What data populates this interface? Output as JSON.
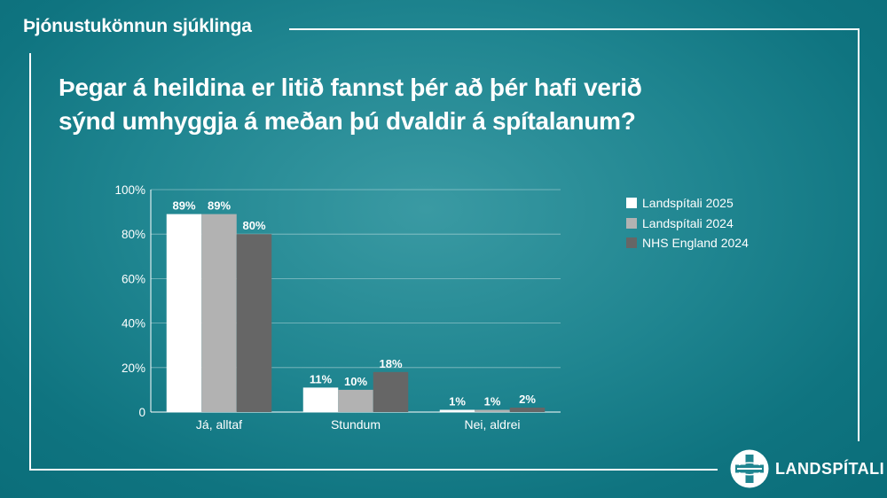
{
  "header": {
    "section_title": "Þjónustukönnun sjúklinga",
    "question_lines": [
      "Þegar á heildina er litið fannst þér að þér hafi verið",
      "sýnd umhyggja á meðan þú dvaldir á spítalanum?"
    ]
  },
  "chart_data": {
    "type": "bar",
    "title": "Þegar á heildina er litið fannst þér að þér hafi verið sýnd umhyggja á meðan þú dvaldir á spítalanum?",
    "categories": [
      "Já, alltaf",
      "Stundum",
      "Nei, aldrei"
    ],
    "series": [
      {
        "name": "Landspítali 2025",
        "values": [
          89,
          11,
          1
        ],
        "labels": [
          "89%",
          "11%",
          "1%"
        ],
        "color": "#ffffff"
      },
      {
        "name": "Landspítali 2024",
        "values": [
          89,
          10,
          1
        ],
        "labels": [
          "89%",
          "10%",
          "1%"
        ],
        "color": "#b2b2b2"
      },
      {
        "name": "NHS England 2024",
        "values": [
          80,
          18,
          2
        ],
        "labels": [
          "80%",
          "18%",
          "2%"
        ],
        "color": "#666666"
      }
    ],
    "ylim": [
      0,
      100
    ],
    "yticks": [
      0,
      20,
      40,
      60,
      80,
      100
    ],
    "ytick_labels": [
      "0",
      "20%",
      "40%",
      "60%",
      "80%",
      "100%"
    ],
    "xlabel": "",
    "ylabel": "",
    "grid": true,
    "legend_position": "right"
  },
  "logo": {
    "text": "LANDSPÍTALI"
  },
  "colors": {
    "background": "#1f8590",
    "text": "#ffffff"
  }
}
